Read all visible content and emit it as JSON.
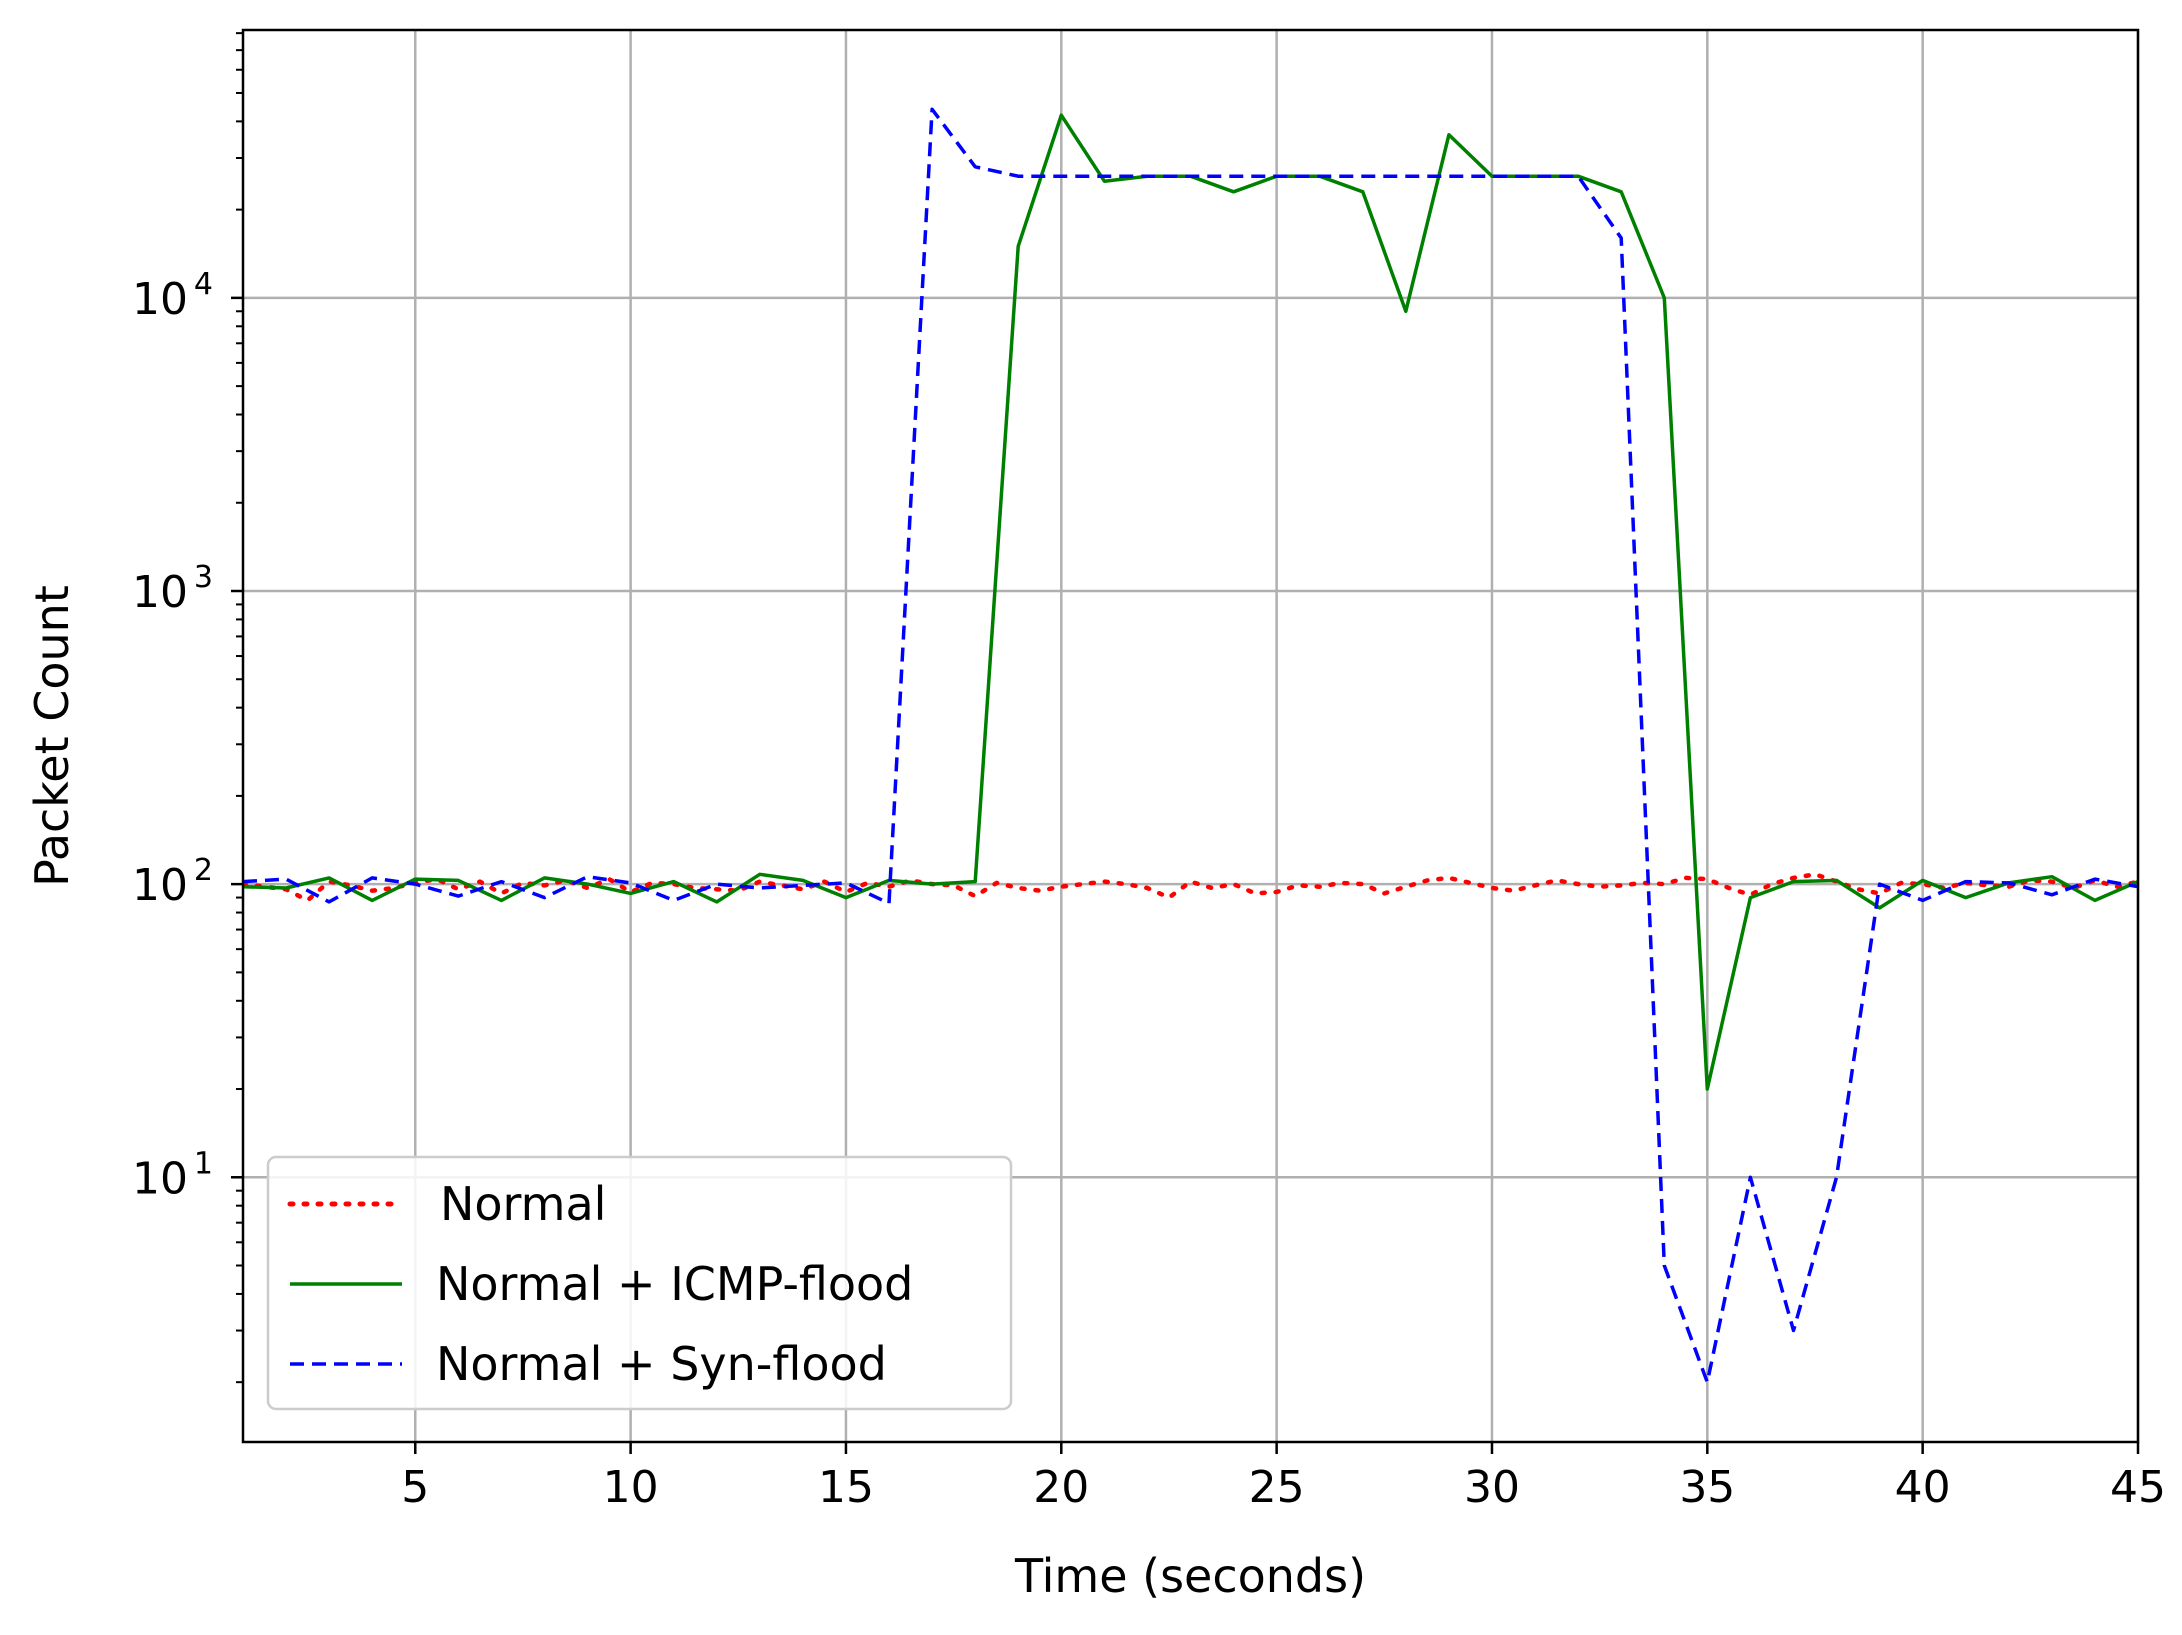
{
  "chart_data": {
    "type": "line",
    "title": "",
    "xlabel": "Time (seconds)",
    "ylabel": "Packet Count",
    "yscale": "log",
    "xlim": [
      1,
      45
    ],
    "ylim": [
      1.25,
      82000
    ],
    "xticks": [
      5,
      10,
      15,
      20,
      25,
      30,
      35,
      40,
      45
    ],
    "xtick_labels": [
      "5",
      "10",
      "15",
      "20",
      "25",
      "30",
      "35",
      "40",
      "45"
    ],
    "yticks": [
      {
        "value": 10,
        "base": "10",
        "exp": "1"
      },
      {
        "value": 100,
        "base": "10",
        "exp": "2"
      },
      {
        "value": 1000,
        "base": "10",
        "exp": "3"
      },
      {
        "value": 10000,
        "base": "10",
        "exp": "4"
      }
    ],
    "grid": true,
    "legend_position": "lower-left",
    "x": [
      1,
      2,
      3,
      4,
      5,
      6,
      7,
      8,
      9,
      10,
      11,
      12,
      13,
      14,
      15,
      16,
      17,
      18,
      19,
      20,
      21,
      22,
      23,
      24,
      25,
      26,
      27,
      28,
      29,
      30,
      31,
      32,
      33,
      34,
      35,
      36,
      37,
      38,
      39,
      40,
      41,
      42,
      43,
      44,
      45
    ],
    "series": [
      {
        "name": "Normal",
        "color": "#ff0000",
        "style": "dotted",
        "points": [
          [
            1,
            100
          ],
          [
            1.5,
            98
          ],
          [
            2,
            96
          ],
          [
            2.5,
            88
          ],
          [
            3,
            102
          ],
          [
            3.5,
            99
          ],
          [
            4,
            95
          ],
          [
            4.5,
            97
          ],
          [
            5,
            101
          ],
          [
            5.5,
            104
          ],
          [
            6,
            96
          ],
          [
            6.5,
            102
          ],
          [
            7,
            93
          ],
          [
            7.5,
            101
          ],
          [
            8,
            99
          ],
          [
            8.5,
            103
          ],
          [
            9,
            97
          ],
          [
            9.5,
            104
          ],
          [
            10,
            94
          ],
          [
            10.5,
            101
          ],
          [
            11,
            100
          ],
          [
            11.5,
            97
          ],
          [
            12,
            96
          ],
          [
            12.5,
            95
          ],
          [
            13,
            102
          ],
          [
            13.5,
            99
          ],
          [
            14,
            96
          ],
          [
            14.5,
            102
          ],
          [
            15,
            94
          ],
          [
            15.5,
            101
          ],
          [
            16,
            98
          ],
          [
            16.5,
            103
          ],
          [
            17,
            100
          ],
          [
            17.5,
            99
          ],
          [
            18,
            91
          ],
          [
            18.5,
            101
          ],
          [
            19,
            97
          ],
          [
            19.5,
            95
          ],
          [
            20,
            98
          ],
          [
            20.5,
            100
          ],
          [
            21,
            102
          ],
          [
            21.5,
            100
          ],
          [
            22,
            97
          ],
          [
            22.5,
            90
          ],
          [
            23,
            102
          ],
          [
            23.5,
            97
          ],
          [
            24,
            100
          ],
          [
            24.5,
            93
          ],
          [
            25,
            94
          ],
          [
            25.5,
            99
          ],
          [
            26,
            98
          ],
          [
            26.5,
            101
          ],
          [
            27,
            100
          ],
          [
            27.5,
            93
          ],
          [
            28,
            98
          ],
          [
            28.5,
            103
          ],
          [
            29,
            105
          ],
          [
            29.5,
            101
          ],
          [
            30,
            97
          ],
          [
            30.5,
            95
          ],
          [
            31,
            99
          ],
          [
            31.5,
            103
          ],
          [
            32,
            100
          ],
          [
            32.5,
            98
          ],
          [
            33,
            99
          ],
          [
            33.5,
            101
          ],
          [
            34,
            100
          ],
          [
            34.5,
            105
          ],
          [
            35,
            104
          ],
          [
            35.5,
            97
          ],
          [
            36,
            92
          ],
          [
            36.5,
            100
          ],
          [
            37,
            105
          ],
          [
            37.5,
            108
          ],
          [
            38,
            102
          ],
          [
            38.5,
            96
          ],
          [
            39,
            93
          ],
          [
            39.5,
            101
          ],
          [
            40,
            100
          ],
          [
            40.5,
            97
          ],
          [
            41,
            101
          ],
          [
            41.5,
            99
          ],
          [
            42,
            98
          ],
          [
            42.5,
            103
          ],
          [
            43,
            102
          ],
          [
            43.5,
            97
          ],
          [
            44,
            103
          ],
          [
            44.5,
            98
          ],
          [
            45,
            102
          ]
        ]
      },
      {
        "name": "Normal + ICMP-flood",
        "color": "#008000",
        "style": "solid",
        "points": [
          [
            1,
            98
          ],
          [
            2,
            97
          ],
          [
            3,
            105
          ],
          [
            4,
            88
          ],
          [
            5,
            104
          ],
          [
            6,
            103
          ],
          [
            7,
            88
          ],
          [
            8,
            105
          ],
          [
            9,
            100
          ],
          [
            10,
            93
          ],
          [
            11,
            102
          ],
          [
            12,
            87
          ],
          [
            13,
            108
          ],
          [
            14,
            103
          ],
          [
            15,
            90
          ],
          [
            16,
            103
          ],
          [
            17,
            100
          ],
          [
            18,
            102
          ],
          [
            19,
            15000
          ],
          [
            20,
            42000
          ],
          [
            21,
            25000
          ],
          [
            22,
            26000
          ],
          [
            23,
            26000
          ],
          [
            24,
            23000
          ],
          [
            25,
            26000
          ],
          [
            26,
            26000
          ],
          [
            27,
            23000
          ],
          [
            28,
            9000
          ],
          [
            29,
            36000
          ],
          [
            30,
            26000
          ],
          [
            31,
            26000
          ],
          [
            32,
            26000
          ],
          [
            33,
            23000
          ],
          [
            34,
            10000
          ],
          [
            35,
            20
          ],
          [
            36,
            90
          ],
          [
            37,
            102
          ],
          [
            38,
            103
          ],
          [
            39,
            83
          ],
          [
            40,
            103
          ],
          [
            41,
            90
          ],
          [
            42,
            101
          ],
          [
            43,
            106
          ],
          [
            44,
            88
          ],
          [
            45,
            102
          ]
        ]
      },
      {
        "name": "Normal + Syn-flood",
        "color": "#0000ff",
        "style": "dashed",
        "points": [
          [
            1,
            102
          ],
          [
            2,
            104
          ],
          [
            3,
            87
          ],
          [
            4,
            105
          ],
          [
            5,
            100
          ],
          [
            6,
            91
          ],
          [
            7,
            102
          ],
          [
            8,
            90
          ],
          [
            9,
            106
          ],
          [
            10,
            101
          ],
          [
            11,
            88
          ],
          [
            12,
            100
          ],
          [
            13,
            97
          ],
          [
            14,
            99
          ],
          [
            15,
            101
          ],
          [
            16,
            86
          ],
          [
            17,
            44000
          ],
          [
            18,
            28000
          ],
          [
            19,
            26000
          ],
          [
            20,
            26000
          ],
          [
            21,
            26000
          ],
          [
            22,
            26000
          ],
          [
            23,
            26000
          ],
          [
            24,
            26000
          ],
          [
            25,
            26000
          ],
          [
            26,
            26000
          ],
          [
            27,
            26000
          ],
          [
            28,
            26000
          ],
          [
            29,
            26000
          ],
          [
            30,
            26000
          ],
          [
            31,
            26000
          ],
          [
            32,
            26000
          ],
          [
            33,
            16000
          ],
          [
            34,
            5
          ],
          [
            35,
            2
          ],
          [
            36,
            10
          ],
          [
            37,
            3
          ],
          [
            38,
            10
          ],
          [
            39,
            100
          ],
          [
            40,
            88
          ],
          [
            41,
            102
          ],
          [
            42,
            101
          ],
          [
            43,
            92
          ],
          [
            44,
            104
          ],
          [
            45,
            98
          ]
        ]
      }
    ]
  }
}
